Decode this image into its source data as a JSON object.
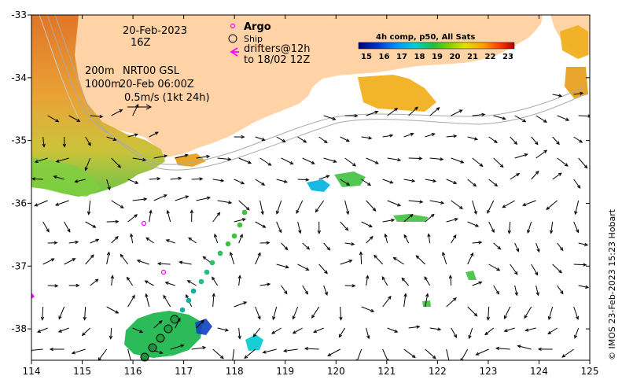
{
  "map": {
    "lon_ticks": [
      "114",
      "115",
      "116",
      "117",
      "118",
      "119",
      "120",
      "121",
      "122",
      "123",
      "124",
      "125"
    ],
    "lat_ticks": [
      "-33",
      "-34",
      "-35",
      "-36",
      "-37",
      "-38"
    ],
    "lon_range": [
      114,
      125
    ],
    "lat_range": [
      -38.5,
      -33
    ],
    "land_color": "#FFD3A6",
    "sea_color": "#FFFFFF"
  },
  "labels": {
    "date": "20-Feb-2023",
    "time": "16Z",
    "contour_200": "200m",
    "contour_1000": "1000m",
    "product": "NRT00 GSL",
    "product_time": "20-Feb 06:00Z",
    "scale_arrow": "0.5m/s (1kt 24h)"
  },
  "legend": {
    "argo": "Argo",
    "ship": "Ship",
    "drifters": "drifters@12h",
    "drifters_range": "to 18/02 12Z",
    "argo_color": "#FF00FF",
    "drifter_color": "#FF00FF"
  },
  "colorbar": {
    "title": "4h comp, p50, All Sats",
    "ticks": [
      "15",
      "16",
      "17",
      "18",
      "19",
      "20",
      "21",
      "22",
      "23"
    ],
    "colors": [
      "#00007F",
      "#0030D0",
      "#0090FF",
      "#00D0D0",
      "#20C040",
      "#80D000",
      "#E0E000",
      "#FFA000",
      "#FF4000",
      "#B00000"
    ]
  },
  "credit": "© IMOS 23-Feb-2023 15:23 Hobart"
}
